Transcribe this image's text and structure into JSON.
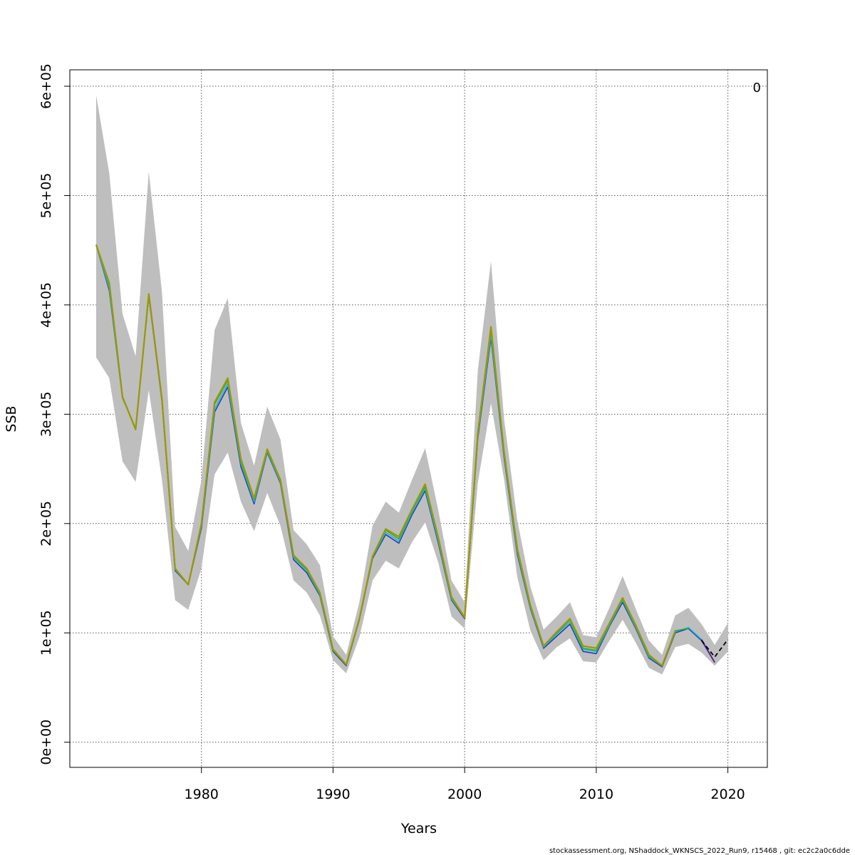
{
  "chart_data": {
    "type": "line",
    "title": "",
    "xlabel": "Years",
    "ylabel": "SSB",
    "corner_label": "0",
    "footer": "stockassessment.org, NShaddock_WKNSCS_2022_Run9, r15468 , git: ec2c2a0c6dde",
    "xlim": [
      1970,
      2023
    ],
    "ylim": [
      -23000,
      615000
    ],
    "x_ticks": [
      1980,
      1990,
      2000,
      2010,
      2020
    ],
    "x_tick_labels": [
      "1980",
      "1990",
      "2000",
      "2010",
      "2020"
    ],
    "y_ticks": [
      0,
      100000,
      200000,
      300000,
      400000,
      500000,
      600000
    ],
    "y_tick_labels": [
      "0e+00",
      "1e+05",
      "2e+05",
      "3e+05",
      "4e+05",
      "5e+05",
      "6e+05"
    ],
    "grid": true,
    "colors": {
      "band": "#bebebe",
      "series_main": "#999900",
      "series_blue": "#1b3fbf",
      "series_cyan": "#2bb5c8",
      "series_green": "#33aa33",
      "series_purple": "#551a8b",
      "series_dashed": "#000000"
    },
    "confidence_band": {
      "x": [
        1972,
        1973,
        1974,
        1975,
        1976,
        1977,
        1978,
        1979,
        1980,
        1981,
        1982,
        1983,
        1984,
        1985,
        1986,
        1987,
        1988,
        1989,
        1990,
        1991,
        1992,
        1993,
        1994,
        1995,
        1996,
        1997,
        1998,
        1999,
        2000,
        2001,
        2002,
        2003,
        2004,
        2005,
        2006,
        2007,
        2008,
        2009,
        2010,
        2011,
        2012,
        2013,
        2014,
        2015,
        2016,
        2017,
        2018,
        2019,
        2020
      ],
      "lower": [
        352000,
        333000,
        257000,
        238000,
        322000,
        240000,
        130000,
        121000,
        159000,
        245000,
        265000,
        220000,
        193000,
        228000,
        198000,
        148000,
        137000,
        116000,
        75000,
        63000,
        96000,
        148000,
        166000,
        159000,
        183000,
        201000,
        164000,
        115000,
        104000,
        237000,
        310000,
        240000,
        151000,
        102000,
        75000,
        87000,
        95000,
        74000,
        73000,
        93000,
        112000,
        91000,
        68000,
        62000,
        87000,
        90000,
        82000,
        70000,
        83000
      ],
      "upper": [
        592000,
        520000,
        392000,
        353000,
        522000,
        412000,
        197000,
        175000,
        240000,
        377000,
        406000,
        292000,
        253000,
        307000,
        277000,
        194000,
        181000,
        162000,
        97000,
        80000,
        128000,
        198000,
        220000,
        210000,
        240000,
        269000,
        212000,
        148000,
        128000,
        340000,
        440000,
        295000,
        203000,
        142000,
        103000,
        115000,
        128000,
        98000,
        96000,
        123000,
        152000,
        122000,
        93000,
        80000,
        116000,
        123000,
        108000,
        89000,
        109000
      ]
    },
    "series": [
      {
        "x": [
          1972,
          1973,
          1974,
          1975,
          1976,
          1977,
          1978,
          1979,
          1980,
          1981,
          1982,
          1983,
          1984,
          1985,
          1986,
          1987,
          1988,
          1989,
          1990,
          1991,
          1992,
          1993,
          1994,
          1995,
          1996,
          1997,
          1998,
          1999,
          2000,
          2001,
          2002,
          2003,
          2004,
          2005,
          2006,
          2007,
          2008,
          2009,
          2010,
          2011,
          2012,
          2013,
          2014,
          2015,
          2016,
          2017,
          2018,
          2019
        ],
        "y": [
          455000,
          413000,
          315000,
          287000,
          408000,
          312000,
          157000,
          144000,
          196000,
          302000,
          325000,
          252000,
          218000,
          265000,
          237000,
          167000,
          155000,
          134000,
          83000,
          70000,
          112000,
          168000,
          190000,
          182000,
          208000,
          230000,
          182000,
          130000,
          113000,
          278000,
          370000,
          260000,
          172000,
          122000,
          86000,
          97000,
          108000,
          83000,
          81000,
          106000,
          128000,
          104000,
          77000,
          69000,
          100000,
          104000,
          93000,
          73000
        ],
        "color": "#1b3fbf"
      },
      {
        "x": [
          1972,
          1973,
          1974,
          1975,
          1976,
          1977,
          1978,
          1979,
          1980,
          1981,
          1982,
          1983,
          1984,
          1985,
          1986,
          1987,
          1988,
          1989,
          1990,
          1991,
          1992,
          1993,
          1994,
          1995,
          1996,
          1997,
          1998,
          1999,
          2000,
          2001,
          2002,
          2003,
          2004,
          2005,
          2006,
          2007,
          2008,
          2009,
          2010,
          2011,
          2012,
          2013,
          2014,
          2015,
          2016,
          2017,
          2018
        ],
        "y": [
          455000,
          415000,
          315000,
          287000,
          409000,
          313000,
          158000,
          144000,
          198000,
          305000,
          328000,
          255000,
          220000,
          266000,
          238000,
          169000,
          157000,
          135000,
          84000,
          71000,
          113000,
          169000,
          192000,
          184000,
          210000,
          232000,
          184000,
          131000,
          114000,
          280000,
          373000,
          262000,
          174000,
          123000,
          87000,
          99000,
          110000,
          85000,
          83000,
          107000,
          130000,
          105000,
          78000,
          70000,
          101000,
          105000,
          94000
        ],
        "color": "#2bb5c8"
      },
      {
        "x": [
          1972,
          1973,
          1974,
          1975,
          1976,
          1977,
          1978,
          1979,
          1980,
          1981,
          1982,
          1983,
          1984,
          1985,
          1986,
          1987,
          1988,
          1989,
          1990,
          1991,
          1992,
          1993,
          1994,
          1995,
          1996,
          1997,
          1998,
          1999,
          2000,
          2001,
          2002,
          2003,
          2004,
          2005,
          2006,
          2007,
          2008,
          2009,
          2010,
          2011,
          2012,
          2013,
          2014,
          2015,
          2016,
          2017
        ],
        "y": [
          455000,
          418000,
          316000,
          286000,
          410000,
          314000,
          159000,
          144000,
          199000,
          309000,
          331000,
          257000,
          222000,
          267000,
          239000,
          170000,
          158000,
          136000,
          84000,
          71000,
          113000,
          169000,
          194000,
          186000,
          212000,
          234000,
          186000,
          132000,
          114000,
          282000,
          377000,
          264000,
          176000,
          124000,
          88000,
          100000,
          112000,
          86000,
          84000,
          108000,
          131000,
          106000,
          79000,
          70000,
          102000,
          104000
        ],
        "color": "#33aa33"
      },
      {
        "x": [
          1972,
          1973,
          1974,
          1975,
          1976,
          1977,
          1978,
          1979,
          1980,
          1981,
          1982,
          1983,
          1984,
          1985,
          1986,
          1987,
          1988,
          1989,
          1990,
          1991,
          1992,
          1993,
          1994,
          1995,
          1996,
          1997,
          1998,
          1999,
          2000,
          2001,
          2002,
          2003,
          2004,
          2005,
          2006,
          2007,
          2008,
          2009,
          2010,
          2011,
          2012,
          2013,
          2014,
          2015,
          2016
        ],
        "y": [
          455000,
          420000,
          316000,
          286000,
          410000,
          314000,
          159000,
          144000,
          200000,
          311000,
          333000,
          259000,
          223000,
          268000,
          240000,
          171000,
          159000,
          137000,
          85000,
          71000,
          113000,
          170000,
          195000,
          188000,
          213000,
          236000,
          187000,
          133000,
          114000,
          283000,
          380000,
          265000,
          177000,
          125000,
          88000,
          101000,
          113000,
          88000,
          86000,
          109000,
          132000,
          107000,
          80000,
          70000,
          102000
        ],
        "color": "#999900"
      },
      {
        "x": [
          2018,
          2019
        ],
        "y": [
          94000,
          73000
        ],
        "color": "#551a8b"
      },
      {
        "x": [
          2018,
          2019,
          2020
        ],
        "y": [
          93000,
          78000,
          94000
        ],
        "color": "#000000",
        "dashed": true
      }
    ]
  }
}
